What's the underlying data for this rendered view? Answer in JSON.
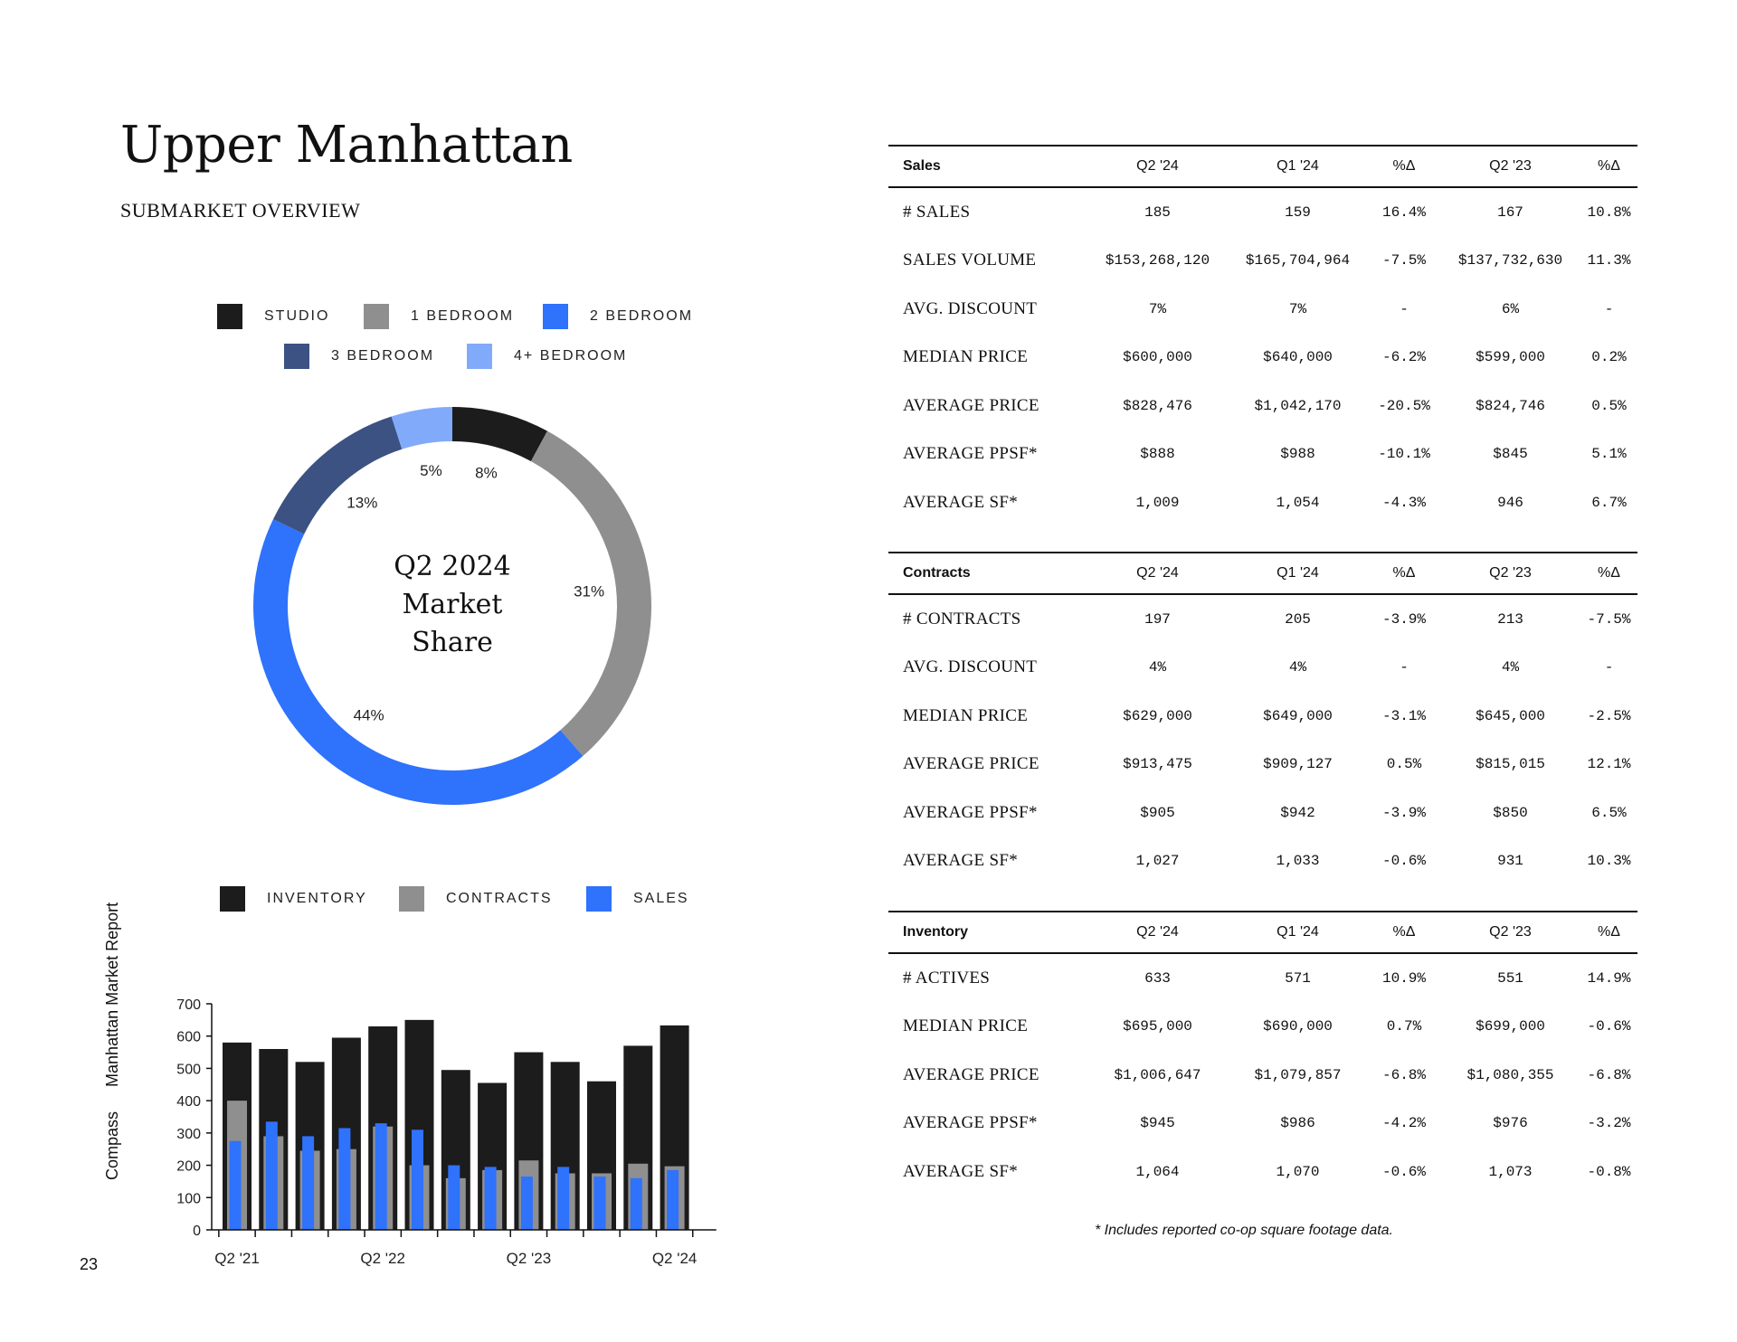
{
  "title": "Upper Manhattan",
  "subtitle": "SUBMARKET OVERVIEW",
  "side_text": {
    "brand": "Compass",
    "report": "Manhattan Market Report"
  },
  "page_number": "23",
  "footnote": "* Includes reported co-op square footage data.",
  "donut_legend": [
    {
      "label": "STUDIO",
      "color": "#1c1c1c"
    },
    {
      "label": "1 BEDROOM",
      "color": "#8f8f8f"
    },
    {
      "label": "2 BEDROOM",
      "color": "#2f72fb"
    },
    {
      "label": "3 BEDROOM",
      "color": "#3b5282"
    },
    {
      "label": "4+ BEDROOM",
      "color": "#82aafa"
    }
  ],
  "bar_legend": [
    {
      "label": "INVENTORY",
      "color": "#1c1c1c"
    },
    {
      "label": "CONTRACTS",
      "color": "#8f8f8f"
    },
    {
      "label": "SALES",
      "color": "#2f72fb"
    }
  ],
  "chart_data": [
    {
      "type": "pie",
      "center_text": [
        "Q2 2024",
        "Market",
        "Share"
      ],
      "categories": [
        "STUDIO",
        "1 BEDROOM",
        "2 BEDROOM",
        "3 BEDROOM",
        "4+ BEDROOM"
      ],
      "values": [
        8,
        31,
        44,
        13,
        5
      ],
      "labels": [
        "8%",
        "31%",
        "44%",
        "13%",
        "5%"
      ],
      "colors": [
        "#1c1c1c",
        "#8f8f8f",
        "#2f72fb",
        "#3b5282",
        "#82aafa"
      ]
    },
    {
      "type": "bar",
      "categories": [
        "Q2 '21",
        "Q3 '21",
        "Q4 '21",
        "Q1 '22",
        "Q2 '22",
        "Q3 '22",
        "Q4 '22",
        "Q1 '23",
        "Q2 '23",
        "Q3 '23",
        "Q4 '23",
        "Q1 '24",
        "Q2 '24"
      ],
      "tick_labels": [
        "Q2 '21",
        "Q2 '22",
        "Q2 '23",
        "Q2 '24"
      ],
      "series": [
        {
          "name": "INVENTORY",
          "color": "#1c1c1c",
          "values": [
            580,
            560,
            520,
            595,
            630,
            650,
            495,
            455,
            550,
            520,
            460,
            570,
            633
          ]
        },
        {
          "name": "CONTRACTS",
          "color": "#8f8f8f",
          "values": [
            400,
            290,
            245,
            250,
            320,
            200,
            160,
            185,
            215,
            175,
            175,
            205,
            197
          ]
        },
        {
          "name": "SALES",
          "color": "#2f72fb",
          "values": [
            275,
            335,
            290,
            315,
            330,
            310,
            200,
            195,
            165,
            195,
            165,
            160,
            185
          ]
        }
      ],
      "ylim": [
        0,
        700
      ],
      "yticks": [
        0,
        100,
        200,
        300,
        400,
        500,
        600,
        700
      ]
    }
  ],
  "tables": [
    {
      "header": [
        "Sales",
        "Q2 '24",
        "Q1 '24",
        "%Δ",
        "Q2 '23",
        "%Δ"
      ],
      "rows": [
        [
          "# SALES",
          "185",
          "159",
          "16.4%",
          "167",
          "10.8%"
        ],
        [
          "SALES VOLUME",
          "$153,268,120",
          "$165,704,964",
          "-7.5%",
          "$137,732,630",
          "11.3%"
        ],
        [
          "AVG. DISCOUNT",
          "7%",
          "7%",
          "-",
          "6%",
          "-"
        ],
        [
          "MEDIAN PRICE",
          "$600,000",
          "$640,000",
          "-6.2%",
          "$599,000",
          "0.2%"
        ],
        [
          "AVERAGE PRICE",
          "$828,476",
          "$1,042,170",
          "-20.5%",
          "$824,746",
          "0.5%"
        ],
        [
          "AVERAGE PPSF*",
          "$888",
          "$988",
          "-10.1%",
          "$845",
          "5.1%"
        ],
        [
          "AVERAGE SF*",
          "1,009",
          "1,054",
          "-4.3%",
          "946",
          "6.7%"
        ]
      ]
    },
    {
      "header": [
        "Contracts",
        "Q2 '24",
        "Q1 '24",
        "%Δ",
        "Q2 '23",
        "%Δ"
      ],
      "rows": [
        [
          "# CONTRACTS",
          "197",
          "205",
          "-3.9%",
          "213",
          "-7.5%"
        ],
        [
          "AVG. DISCOUNT",
          "4%",
          "4%",
          "-",
          "4%",
          "-"
        ],
        [
          "MEDIAN PRICE",
          "$629,000",
          "$649,000",
          "-3.1%",
          "$645,000",
          "-2.5%"
        ],
        [
          "AVERAGE PRICE",
          "$913,475",
          "$909,127",
          "0.5%",
          "$815,015",
          "12.1%"
        ],
        [
          "AVERAGE PPSF*",
          "$905",
          "$942",
          "-3.9%",
          "$850",
          "6.5%"
        ],
        [
          "AVERAGE SF*",
          "1,027",
          "1,033",
          "-0.6%",
          "931",
          "10.3%"
        ]
      ]
    },
    {
      "header": [
        "Inventory",
        "Q2 '24",
        "Q1 '24",
        "%Δ",
        "Q2 '23",
        "%Δ"
      ],
      "rows": [
        [
          "# ACTIVES",
          "633",
          "571",
          "10.9%",
          "551",
          "14.9%"
        ],
        [
          "MEDIAN PRICE",
          "$695,000",
          "$690,000",
          "0.7%",
          "$699,000",
          "-0.6%"
        ],
        [
          "AVERAGE PRICE",
          "$1,006,647",
          "$1,079,857",
          "-6.8%",
          "$1,080,355",
          "-6.8%"
        ],
        [
          "AVERAGE PPSF*",
          "$945",
          "$986",
          "-4.2%",
          "$976",
          "-3.2%"
        ],
        [
          "AVERAGE SF*",
          "1,064",
          "1,070",
          "-0.6%",
          "1,073",
          "-0.8%"
        ]
      ]
    }
  ]
}
